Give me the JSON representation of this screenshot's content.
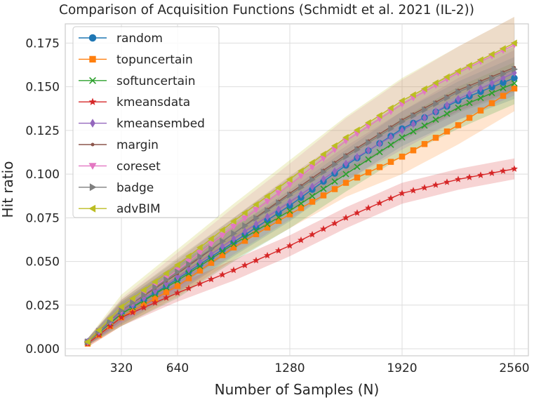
{
  "chart_data": {
    "type": "line",
    "title": "Comparison of Acquisition Functions (Schmidt et al. 2021 (IL-2))",
    "xlabel": "Number of Samples (N)",
    "ylabel": "Hit ratio",
    "xlim": [
      0,
      2640
    ],
    "ylim": [
      -0.004,
      0.186
    ],
    "x_start": 128,
    "x_end": 2560,
    "x_step": 64,
    "xticks": [
      320,
      640,
      1280,
      1920,
      2560
    ],
    "yticks": [
      0.0,
      0.025,
      0.05,
      0.075,
      0.1,
      0.125,
      0.15,
      0.175
    ],
    "ytick_labels": [
      "0.000",
      "0.025",
      "0.050",
      "0.075",
      "0.100",
      "0.125",
      "0.150",
      "0.175"
    ],
    "grid": true,
    "legend_position": "top-left",
    "series": [
      {
        "name": "random",
        "color": "#1f77b4",
        "marker": "circle",
        "anchors": [
          [
            128,
            0.004
          ],
          [
            320,
            0.02
          ],
          [
            640,
            0.04
          ],
          [
            960,
            0.061
          ],
          [
            1280,
            0.082
          ],
          [
            1600,
            0.105
          ],
          [
            1920,
            0.126
          ],
          [
            2240,
            0.142
          ],
          [
            2560,
            0.155
          ]
        ],
        "band": [
          [
            128,
            0.002
          ],
          [
            320,
            0.006
          ],
          [
            640,
            0.008
          ],
          [
            960,
            0.008
          ],
          [
            1280,
            0.009
          ],
          [
            1600,
            0.009
          ],
          [
            1920,
            0.01
          ],
          [
            2240,
            0.011
          ],
          [
            2560,
            0.012
          ]
        ]
      },
      {
        "name": "topuncertain",
        "color": "#ff7f0e",
        "marker": "square",
        "anchors": [
          [
            128,
            0.003
          ],
          [
            320,
            0.018
          ],
          [
            640,
            0.036
          ],
          [
            960,
            0.058
          ],
          [
            1280,
            0.077
          ],
          [
            1600,
            0.095
          ],
          [
            1920,
            0.11
          ],
          [
            2240,
            0.128
          ],
          [
            2560,
            0.149
          ]
        ],
        "band": [
          [
            128,
            0.002
          ],
          [
            320,
            0.005
          ],
          [
            640,
            0.006
          ],
          [
            960,
            0.007
          ],
          [
            1280,
            0.008
          ],
          [
            1600,
            0.008
          ],
          [
            1920,
            0.01
          ],
          [
            2240,
            0.011
          ],
          [
            2560,
            0.013
          ]
        ]
      },
      {
        "name": "softuncertain",
        "color": "#2ca02c",
        "marker": "x",
        "anchors": [
          [
            128,
            0.004
          ],
          [
            320,
            0.02
          ],
          [
            640,
            0.039
          ],
          [
            960,
            0.06
          ],
          [
            1280,
            0.079
          ],
          [
            1600,
            0.1
          ],
          [
            1920,
            0.121
          ],
          [
            2240,
            0.138
          ],
          [
            2560,
            0.152
          ]
        ],
        "band": [
          [
            128,
            0.002
          ],
          [
            320,
            0.007
          ],
          [
            640,
            0.01
          ],
          [
            960,
            0.01
          ],
          [
            1280,
            0.01
          ],
          [
            1600,
            0.01
          ],
          [
            1920,
            0.011
          ],
          [
            2240,
            0.012
          ],
          [
            2560,
            0.012
          ]
        ]
      },
      {
        "name": "kmeansdata",
        "color": "#d62728",
        "marker": "star",
        "anchors": [
          [
            128,
            0.003
          ],
          [
            320,
            0.018
          ],
          [
            640,
            0.032
          ],
          [
            960,
            0.045
          ],
          [
            1280,
            0.059
          ],
          [
            1600,
            0.075
          ],
          [
            1920,
            0.089
          ],
          [
            2240,
            0.097
          ],
          [
            2560,
            0.103
          ]
        ],
        "band": [
          [
            128,
            0.002
          ],
          [
            320,
            0.005
          ],
          [
            640,
            0.005
          ],
          [
            960,
            0.006
          ],
          [
            1280,
            0.006
          ],
          [
            1600,
            0.006
          ],
          [
            1920,
            0.006
          ],
          [
            2240,
            0.006
          ],
          [
            2560,
            0.006
          ]
        ]
      },
      {
        "name": "kmeansembed",
        "color": "#9467bd",
        "marker": "diamond",
        "anchors": [
          [
            128,
            0.004
          ],
          [
            320,
            0.021
          ],
          [
            640,
            0.041
          ],
          [
            960,
            0.063
          ],
          [
            1280,
            0.084
          ],
          [
            1600,
            0.106
          ],
          [
            1920,
            0.125
          ],
          [
            2240,
            0.143
          ],
          [
            2560,
            0.158
          ]
        ],
        "band": [
          [
            128,
            0.002
          ],
          [
            320,
            0.006
          ],
          [
            640,
            0.008
          ],
          [
            960,
            0.009
          ],
          [
            1280,
            0.01
          ],
          [
            1600,
            0.01
          ],
          [
            1920,
            0.011
          ],
          [
            2240,
            0.012
          ],
          [
            2560,
            0.013
          ]
        ]
      },
      {
        "name": "margin",
        "color": "#8c564b",
        "marker": "dot",
        "anchors": [
          [
            128,
            0.004
          ],
          [
            320,
            0.022
          ],
          [
            640,
            0.043
          ],
          [
            960,
            0.066
          ],
          [
            1280,
            0.089
          ],
          [
            1600,
            0.111
          ],
          [
            1920,
            0.131
          ],
          [
            2240,
            0.148
          ],
          [
            2560,
            0.161
          ]
        ],
        "band": [
          [
            128,
            0.002
          ],
          [
            320,
            0.006
          ],
          [
            640,
            0.008
          ],
          [
            960,
            0.009
          ],
          [
            1280,
            0.01
          ],
          [
            1600,
            0.01
          ],
          [
            1920,
            0.011
          ],
          [
            2240,
            0.012
          ],
          [
            2560,
            0.013
          ]
        ]
      },
      {
        "name": "coreset",
        "color": "#e377c2",
        "marker": "triangle-down",
        "anchors": [
          [
            128,
            0.004
          ],
          [
            320,
            0.022
          ],
          [
            640,
            0.045
          ],
          [
            960,
            0.07
          ],
          [
            1280,
            0.094
          ],
          [
            1600,
            0.119
          ],
          [
            1920,
            0.14
          ],
          [
            2240,
            0.158
          ],
          [
            2560,
            0.174
          ]
        ],
        "band": [
          [
            128,
            0.002
          ],
          [
            320,
            0.007
          ],
          [
            640,
            0.01
          ],
          [
            960,
            0.011
          ],
          [
            1280,
            0.012
          ],
          [
            1600,
            0.013
          ],
          [
            1920,
            0.014
          ],
          [
            2240,
            0.015
          ],
          [
            2560,
            0.016
          ]
        ]
      },
      {
        "name": "badge",
        "color": "#7f7f7f",
        "marker": "triangle-right",
        "anchors": [
          [
            128,
            0.004
          ],
          [
            320,
            0.022
          ],
          [
            640,
            0.044
          ],
          [
            960,
            0.066
          ],
          [
            1280,
            0.088
          ],
          [
            1600,
            0.11
          ],
          [
            1920,
            0.13
          ],
          [
            2240,
            0.147
          ],
          [
            2560,
            0.16
          ]
        ],
        "band": [
          [
            128,
            0.002
          ],
          [
            320,
            0.006
          ],
          [
            640,
            0.008
          ],
          [
            960,
            0.009
          ],
          [
            1280,
            0.01
          ],
          [
            1600,
            0.01
          ],
          [
            1920,
            0.011
          ],
          [
            2240,
            0.012
          ],
          [
            2560,
            0.013
          ]
        ]
      },
      {
        "name": "advBIM",
        "color": "#bcbd22",
        "marker": "triangle-left",
        "anchors": [
          [
            128,
            0.004
          ],
          [
            320,
            0.024
          ],
          [
            640,
            0.048
          ],
          [
            960,
            0.073
          ],
          [
            1280,
            0.097
          ],
          [
            1600,
            0.121
          ],
          [
            1920,
            0.142
          ],
          [
            2240,
            0.159
          ],
          [
            2560,
            0.175
          ]
        ],
        "band": [
          [
            128,
            0.002
          ],
          [
            320,
            0.007
          ],
          [
            640,
            0.009
          ],
          [
            960,
            0.01
          ],
          [
            1280,
            0.011
          ],
          [
            1600,
            0.012
          ],
          [
            1920,
            0.013
          ],
          [
            2240,
            0.014
          ],
          [
            2560,
            0.015
          ]
        ]
      }
    ]
  }
}
